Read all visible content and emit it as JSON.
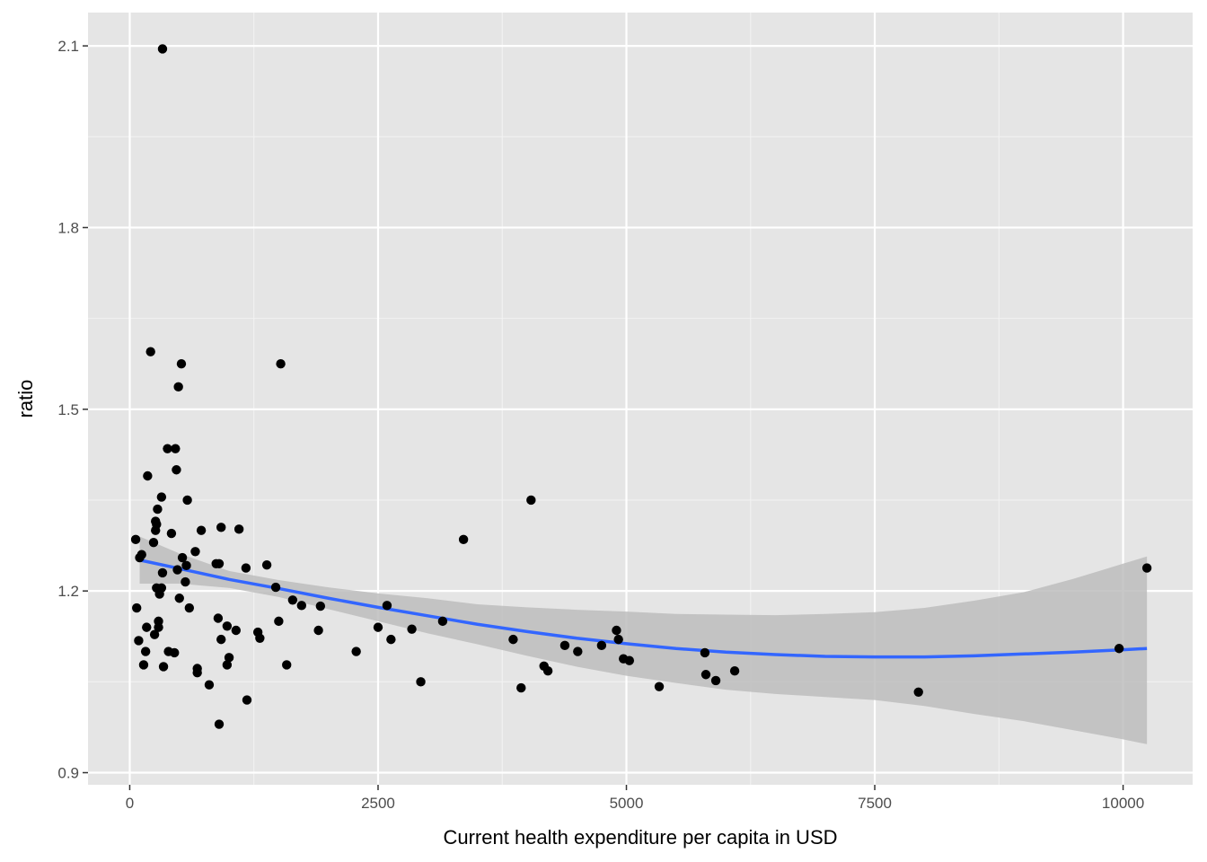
{
  "chart_data": {
    "type": "scatter",
    "title": "",
    "xlabel": "Current health expenditure per capita in USD",
    "ylabel": "ratio",
    "xlim": [
      -420,
      10700
    ],
    "ylim": [
      0.88,
      2.155
    ],
    "x_ticks": [
      0,
      2500,
      5000,
      7500,
      10000
    ],
    "x_tick_labels": [
      "0",
      "2500",
      "5000",
      "7500",
      "10000"
    ],
    "y_ticks": [
      0.9,
      1.2,
      1.5,
      1.8,
      2.1
    ],
    "y_tick_labels": [
      "0.9",
      "1.2",
      "1.5",
      "1.8",
      "2.1"
    ],
    "grid": true,
    "legend": "none",
    "colors": {
      "panel_bg": "#e5e5e5",
      "grid_major": "#ffffff",
      "points": "#000000",
      "smooth_line": "#3366ff",
      "confidence_band": "#bdbdbd"
    },
    "points": [
      [
        60,
        1.285
      ],
      [
        70,
        1.172
      ],
      [
        90,
        1.118
      ],
      [
        100,
        1.255
      ],
      [
        120,
        1.26
      ],
      [
        140,
        1.078
      ],
      [
        160,
        1.1
      ],
      [
        170,
        1.14
      ],
      [
        180,
        1.39
      ],
      [
        210,
        1.595
      ],
      [
        240,
        1.28
      ],
      [
        250,
        1.128
      ],
      [
        260,
        1.3
      ],
      [
        260,
        1.315
      ],
      [
        270,
        1.31
      ],
      [
        270,
        1.205
      ],
      [
        280,
        1.335
      ],
      [
        290,
        1.15
      ],
      [
        290,
        1.14
      ],
      [
        300,
        1.195
      ],
      [
        320,
        1.355
      ],
      [
        320,
        1.205
      ],
      [
        330,
        2.095
      ],
      [
        330,
        1.23
      ],
      [
        340,
        1.075
      ],
      [
        380,
        1.435
      ],
      [
        390,
        1.1
      ],
      [
        420,
        1.295
      ],
      [
        450,
        1.098
      ],
      [
        460,
        1.435
      ],
      [
        480,
        1.235
      ],
      [
        470,
        1.4
      ],
      [
        490,
        1.537
      ],
      [
        500,
        1.188
      ],
      [
        520,
        1.575
      ],
      [
        530,
        1.255
      ],
      [
        560,
        1.215
      ],
      [
        570,
        1.242
      ],
      [
        580,
        1.35
      ],
      [
        600,
        1.172
      ],
      [
        660,
        1.265
      ],
      [
        680,
        1.065
      ],
      [
        680,
        1.072
      ],
      [
        720,
        1.3
      ],
      [
        800,
        1.045
      ],
      [
        870,
        1.245
      ],
      [
        890,
        1.155
      ],
      [
        900,
        1.245
      ],
      [
        900,
        0.98
      ],
      [
        920,
        1.305
      ],
      [
        920,
        1.12
      ],
      [
        980,
        1.142
      ],
      [
        980,
        1.078
      ],
      [
        1000,
        1.09
      ],
      [
        1070,
        1.135
      ],
      [
        1100,
        1.302
      ],
      [
        1170,
        1.238
      ],
      [
        1180,
        1.02
      ],
      [
        1290,
        1.132
      ],
      [
        1310,
        1.122
      ],
      [
        1380,
        1.243
      ],
      [
        1470,
        1.206
      ],
      [
        1500,
        1.15
      ],
      [
        1520,
        1.575
      ],
      [
        1580,
        1.078
      ],
      [
        1640,
        1.185
      ],
      [
        1730,
        1.176
      ],
      [
        1900,
        1.135
      ],
      [
        1920,
        1.175
      ],
      [
        2280,
        1.1
      ],
      [
        2500,
        1.14
      ],
      [
        2590,
        1.176
      ],
      [
        2630,
        1.12
      ],
      [
        2840,
        1.137
      ],
      [
        2930,
        1.05
      ],
      [
        3150,
        1.15
      ],
      [
        3360,
        1.285
      ],
      [
        3860,
        1.12
      ],
      [
        3940,
        1.04
      ],
      [
        4040,
        1.35
      ],
      [
        4170,
        1.076
      ],
      [
        4210,
        1.068
      ],
      [
        4380,
        1.11
      ],
      [
        4510,
        1.1
      ],
      [
        4750,
        1.11
      ],
      [
        4900,
        1.135
      ],
      [
        4920,
        1.12
      ],
      [
        4970,
        1.088
      ],
      [
        5030,
        1.085
      ],
      [
        5330,
        1.042
      ],
      [
        5790,
        1.098
      ],
      [
        5800,
        1.062
      ],
      [
        5900,
        1.052
      ],
      [
        6090,
        1.068
      ],
      [
        7940,
        1.033
      ],
      [
        9960,
        1.105
      ],
      [
        10240,
        1.238
      ]
    ],
    "smooth": {
      "x": [
        100,
        500,
        1000,
        1500,
        2000,
        2500,
        3000,
        3500,
        4000,
        4500,
        5000,
        5500,
        6000,
        6500,
        7000,
        7500,
        8000,
        8500,
        9000,
        9500,
        10000,
        10240
      ],
      "y": [
        1.251,
        1.237,
        1.219,
        1.204,
        1.188,
        1.173,
        1.159,
        1.145,
        1.133,
        1.122,
        1.113,
        1.105,
        1.099,
        1.095,
        1.092,
        1.091,
        1.091,
        1.093,
        1.096,
        1.099,
        1.103,
        1.105
      ],
      "lower": [
        1.212,
        1.212,
        1.205,
        1.19,
        1.17,
        1.15,
        1.13,
        1.112,
        1.093,
        1.075,
        1.06,
        1.048,
        1.037,
        1.03,
        1.025,
        1.02,
        1.01,
        0.997,
        0.985,
        0.97,
        0.955,
        0.947
      ],
      "upper": [
        1.29,
        1.262,
        1.233,
        1.218,
        1.206,
        1.196,
        1.188,
        1.178,
        1.173,
        1.169,
        1.166,
        1.162,
        1.161,
        1.16,
        1.162,
        1.165,
        1.172,
        1.184,
        1.198,
        1.22,
        1.245,
        1.257
      ]
    }
  }
}
